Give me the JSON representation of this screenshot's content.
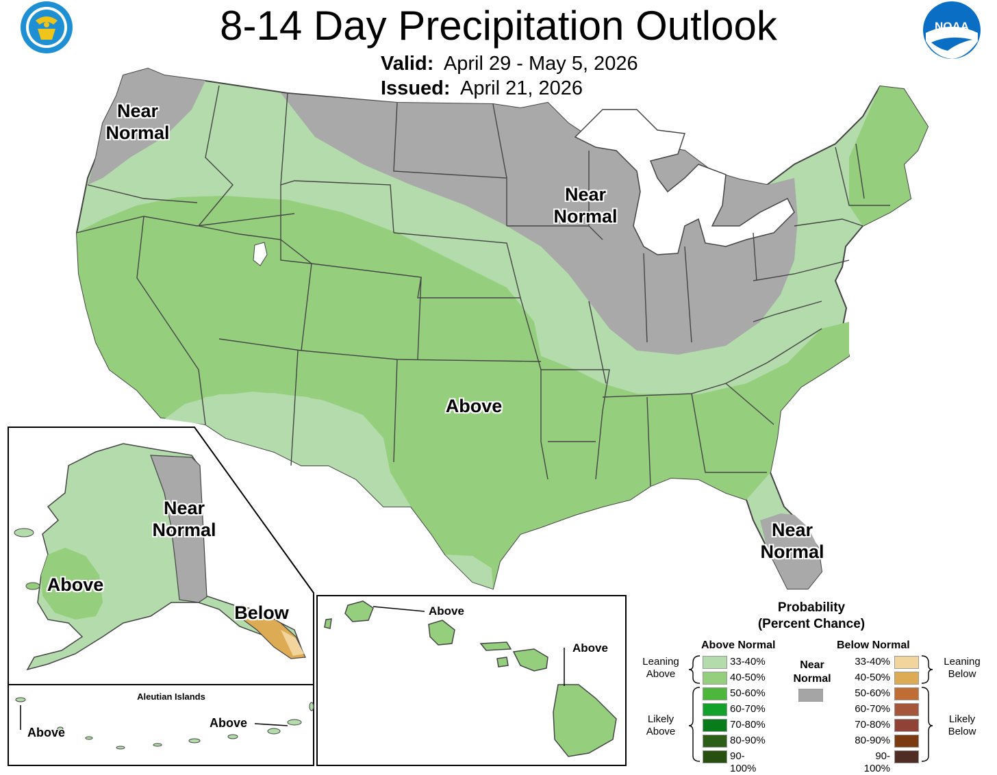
{
  "header": {
    "title": "8-14 Day Precipitation Outlook",
    "valid_label": "Valid:",
    "valid_value": "April 29 - May 5, 2026",
    "issued_label": "Issued:",
    "issued_value": "April 21, 2026",
    "left_logo": "department-of-commerce-seal",
    "right_logo": "noaa-logo",
    "right_logo_text": "NOAA"
  },
  "map_labels": {
    "conus_northwest": "Near\nNormal",
    "conus_midwest": "Near\nNormal",
    "conus_south": "Above",
    "conus_florida": "Near\nNormal",
    "alaska_east": "Near\nNormal",
    "alaska_west": "Above",
    "alaska_southeast": "Below",
    "aleutian_title": "Aleutian Islands",
    "aleutian_west": "Above",
    "aleutian_east": "Above",
    "hawaii_kauai": "Above",
    "hawaii_big_island": "Above"
  },
  "categories": {
    "above_leaning_33_40": "#b3dbab",
    "above_leaning_40_50": "#95cf7e",
    "near_normal": "#a9a9aa",
    "below_leaning_33_40": "#f1d59c",
    "below_leaning_40_50": "#deab55"
  },
  "legend": {
    "title_line1": "Probability",
    "title_line2": "(Percent Chance)",
    "above_header": "Above Normal",
    "below_header": "Below Normal",
    "near_label": "Near\nNormal",
    "near_color": "#a5a5a5",
    "leaning_above": "Leaning\nAbove",
    "likely_above": "Likely\nAbove",
    "leaning_below": "Leaning\nBelow",
    "likely_below": "Likely\nBelow",
    "above_items": [
      {
        "label": "33-40%",
        "color": "#b3dbab"
      },
      {
        "label": "40-50%",
        "color": "#95cf7e"
      },
      {
        "label": "50-60%",
        "color": "#4cb73b"
      },
      {
        "label": "60-70%",
        "color": "#12a12a"
      },
      {
        "label": "70-80%",
        "color": "#087b1b"
      },
      {
        "label": "80-90%",
        "color": "#2c5e17"
      },
      {
        "label": "90-100%",
        "color": "#264f10"
      }
    ],
    "below_items": [
      {
        "label": "33-40%",
        "color": "#f1d59c"
      },
      {
        "label": "40-50%",
        "color": "#deab55"
      },
      {
        "label": "50-60%",
        "color": "#c06c35"
      },
      {
        "label": "60-70%",
        "color": "#a4553a"
      },
      {
        "label": "70-80%",
        "color": "#904236"
      },
      {
        "label": "80-90%",
        "color": "#7b3a10"
      },
      {
        "label": "90-100%",
        "color": "#4f2d25"
      }
    ]
  }
}
